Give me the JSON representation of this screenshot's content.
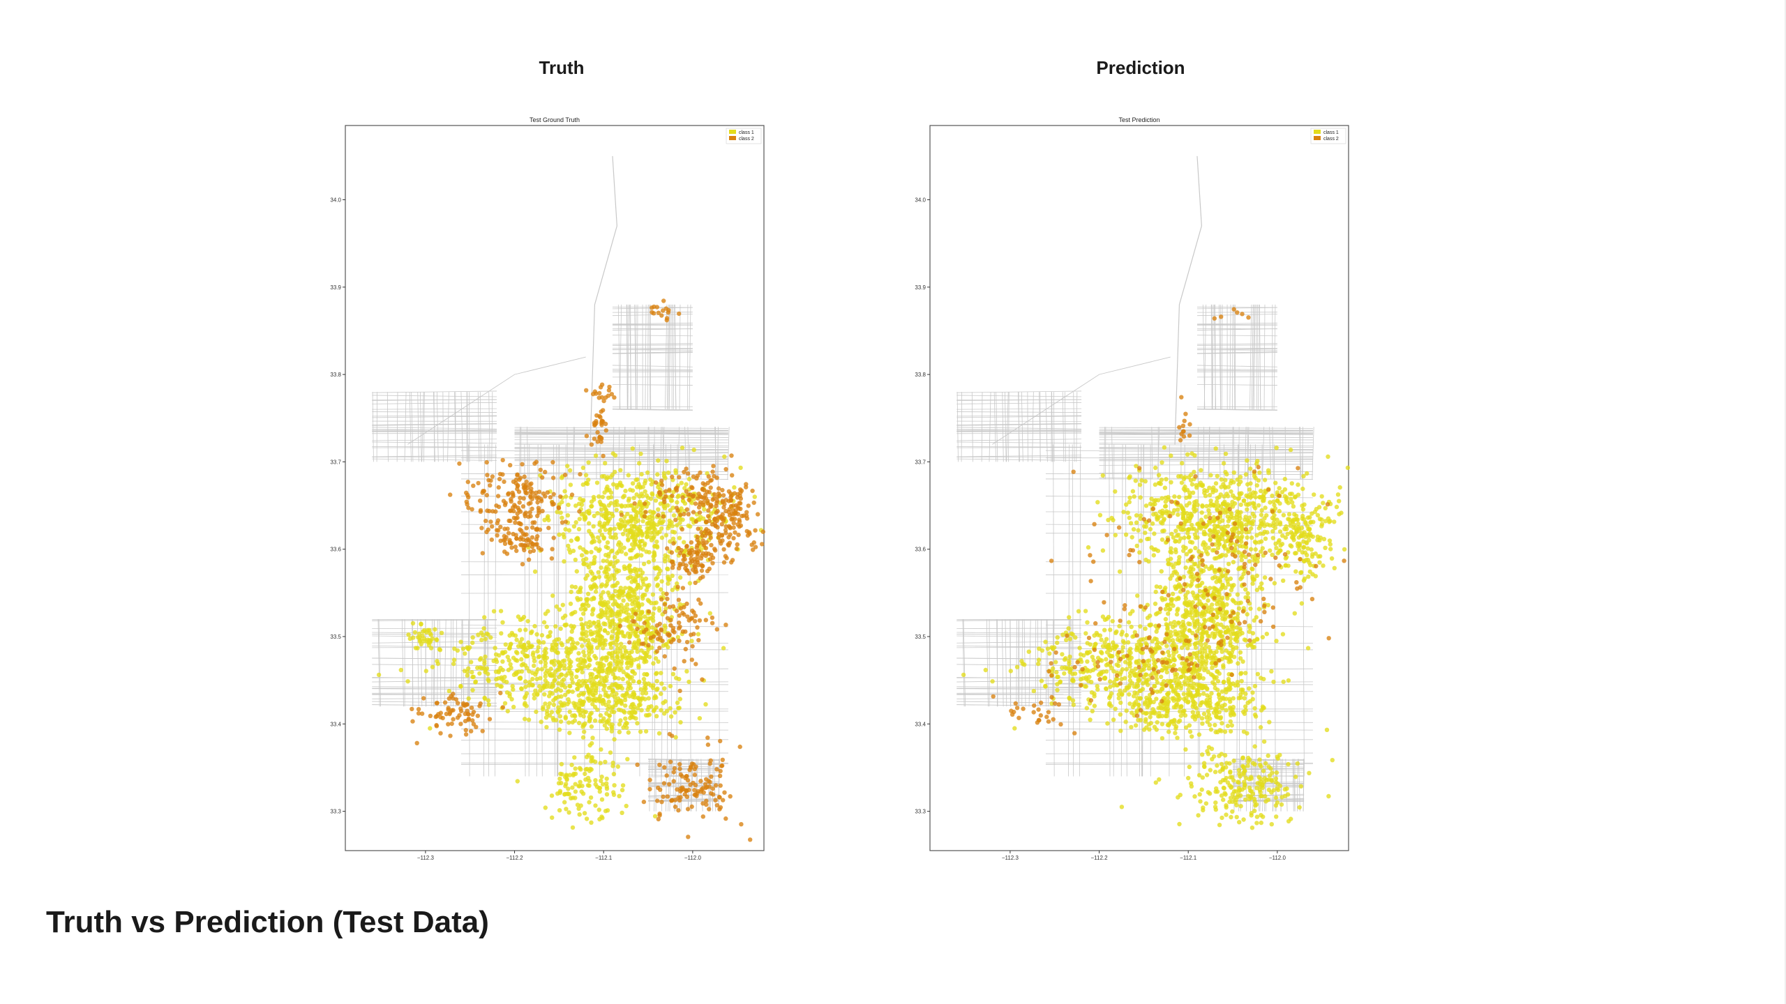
{
  "slide": {
    "left_panel_title": "Truth",
    "right_panel_title": "Prediction",
    "caption": "Truth vs Prediction (Test Data)"
  },
  "colors": {
    "class1": "#e3dc1c",
    "class2": "#d9820f",
    "roads": "#c8c8c8",
    "frame": "#555555"
  },
  "chart_data": [
    {
      "type": "scatter",
      "title": "Test Ground Truth",
      "xlabel": "",
      "ylabel": "",
      "xlim": [
        -112.39,
        -111.92
      ],
      "ylim": [
        33.255,
        34.085
      ],
      "xticks": [
        -112.3,
        -112.2,
        -112.1,
        -112.0
      ],
      "xtick_labels": [
        "−112.3",
        "−112.2",
        "−112.1",
        "−112.0"
      ],
      "yticks": [
        33.3,
        33.4,
        33.5,
        33.6,
        33.7,
        33.8,
        33.9,
        34.0
      ],
      "ytick_labels": [
        "33.3",
        "33.4",
        "33.5",
        "33.6",
        "33.7",
        "33.8",
        "33.9",
        "34.0"
      ],
      "legend": {
        "position": "top-right",
        "entries": [
          "class 1",
          "class 2"
        ]
      },
      "series": [
        {
          "name": "class 1",
          "color": "#e3dc1c",
          "clusters": [
            {
              "cx": -112.08,
              "cy": 33.52,
              "rx": 0.06,
              "ry": 0.09,
              "n": 700
            },
            {
              "cx": -112.17,
              "cy": 33.47,
              "rx": 0.1,
              "ry": 0.045,
              "n": 450
            },
            {
              "cx": -112.06,
              "cy": 33.64,
              "rx": 0.09,
              "ry": 0.05,
              "n": 520
            },
            {
              "cx": -112.1,
              "cy": 33.42,
              "rx": 0.08,
              "ry": 0.03,
              "n": 260
            },
            {
              "cx": -112.12,
              "cy": 33.33,
              "rx": 0.04,
              "ry": 0.04,
              "n": 120
            },
            {
              "cx": -112.3,
              "cy": 33.5,
              "rx": 0.02,
              "ry": 0.015,
              "n": 40
            }
          ]
        },
        {
          "name": "class 2",
          "color": "#d9820f",
          "clusters": [
            {
              "cx": -112.2,
              "cy": 33.66,
              "rx": 0.05,
              "ry": 0.035,
              "n": 160
            },
            {
              "cx": -112.19,
              "cy": 33.61,
              "rx": 0.03,
              "ry": 0.02,
              "n": 70
            },
            {
              "cx": -111.96,
              "cy": 33.63,
              "rx": 0.03,
              "ry": 0.04,
              "n": 150
            },
            {
              "cx": -112.0,
              "cy": 33.59,
              "rx": 0.03,
              "ry": 0.02,
              "n": 80
            },
            {
              "cx": -112.0,
              "cy": 33.66,
              "rx": 0.05,
              "ry": 0.03,
              "n": 90
            },
            {
              "cx": -112.27,
              "cy": 33.41,
              "rx": 0.04,
              "ry": 0.02,
              "n": 70
            },
            {
              "cx": -112.02,
              "cy": 33.51,
              "rx": 0.04,
              "ry": 0.04,
              "n": 90
            },
            {
              "cx": -112.0,
              "cy": 33.33,
              "rx": 0.05,
              "ry": 0.04,
              "n": 120
            },
            {
              "cx": -112.105,
              "cy": 33.74,
              "rx": 0.008,
              "ry": 0.03,
              "n": 30
            },
            {
              "cx": -112.1,
              "cy": 33.78,
              "rx": 0.015,
              "ry": 0.012,
              "n": 15
            },
            {
              "cx": -112.04,
              "cy": 33.87,
              "rx": 0.03,
              "ry": 0.01,
              "n": 15
            }
          ]
        }
      ]
    },
    {
      "type": "scatter",
      "title": "Test Prediction",
      "xlabel": "",
      "ylabel": "",
      "xlim": [
        -112.39,
        -111.92
      ],
      "ylim": [
        33.255,
        34.085
      ],
      "xticks": [
        -112.3,
        -112.2,
        -112.1,
        -112.0
      ],
      "xtick_labels": [
        "−112.3",
        "−112.2",
        "−112.1",
        "−112.0"
      ],
      "yticks": [
        33.3,
        33.4,
        33.5,
        33.6,
        33.7,
        33.8,
        33.9,
        34.0
      ],
      "ytick_labels": [
        "33.3",
        "33.4",
        "33.5",
        "33.6",
        "33.7",
        "33.8",
        "33.9",
        "34.0"
      ],
      "legend": {
        "position": "top-right",
        "entries": [
          "class 1",
          "class 2"
        ]
      },
      "series": [
        {
          "name": "class 1",
          "color": "#e3dc1c",
          "clusters": [
            {
              "cx": -112.08,
              "cy": 33.52,
              "rx": 0.06,
              "ry": 0.09,
              "n": 700
            },
            {
              "cx": -112.17,
              "cy": 33.47,
              "rx": 0.1,
              "ry": 0.045,
              "n": 480
            },
            {
              "cx": -112.06,
              "cy": 33.64,
              "rx": 0.11,
              "ry": 0.05,
              "n": 650
            },
            {
              "cx": -112.1,
              "cy": 33.42,
              "rx": 0.08,
              "ry": 0.03,
              "n": 280
            },
            {
              "cx": -112.04,
              "cy": 33.33,
              "rx": 0.06,
              "ry": 0.04,
              "n": 220
            },
            {
              "cx": -111.97,
              "cy": 33.61,
              "rx": 0.03,
              "ry": 0.04,
              "n": 110
            }
          ]
        },
        {
          "name": "class 2",
          "color": "#d9820f",
          "clusters": [
            {
              "cx": -112.08,
              "cy": 33.58,
              "rx": 0.12,
              "ry": 0.1,
              "n": 130
            },
            {
              "cx": -112.15,
              "cy": 33.47,
              "rx": 0.1,
              "ry": 0.04,
              "n": 60
            },
            {
              "cx": -112.27,
              "cy": 33.41,
              "rx": 0.04,
              "ry": 0.02,
              "n": 25
            },
            {
              "cx": -112.105,
              "cy": 33.74,
              "rx": 0.006,
              "ry": 0.02,
              "n": 12
            },
            {
              "cx": -112.04,
              "cy": 33.87,
              "rx": 0.02,
              "ry": 0.008,
              "n": 6
            }
          ]
        }
      ]
    }
  ]
}
